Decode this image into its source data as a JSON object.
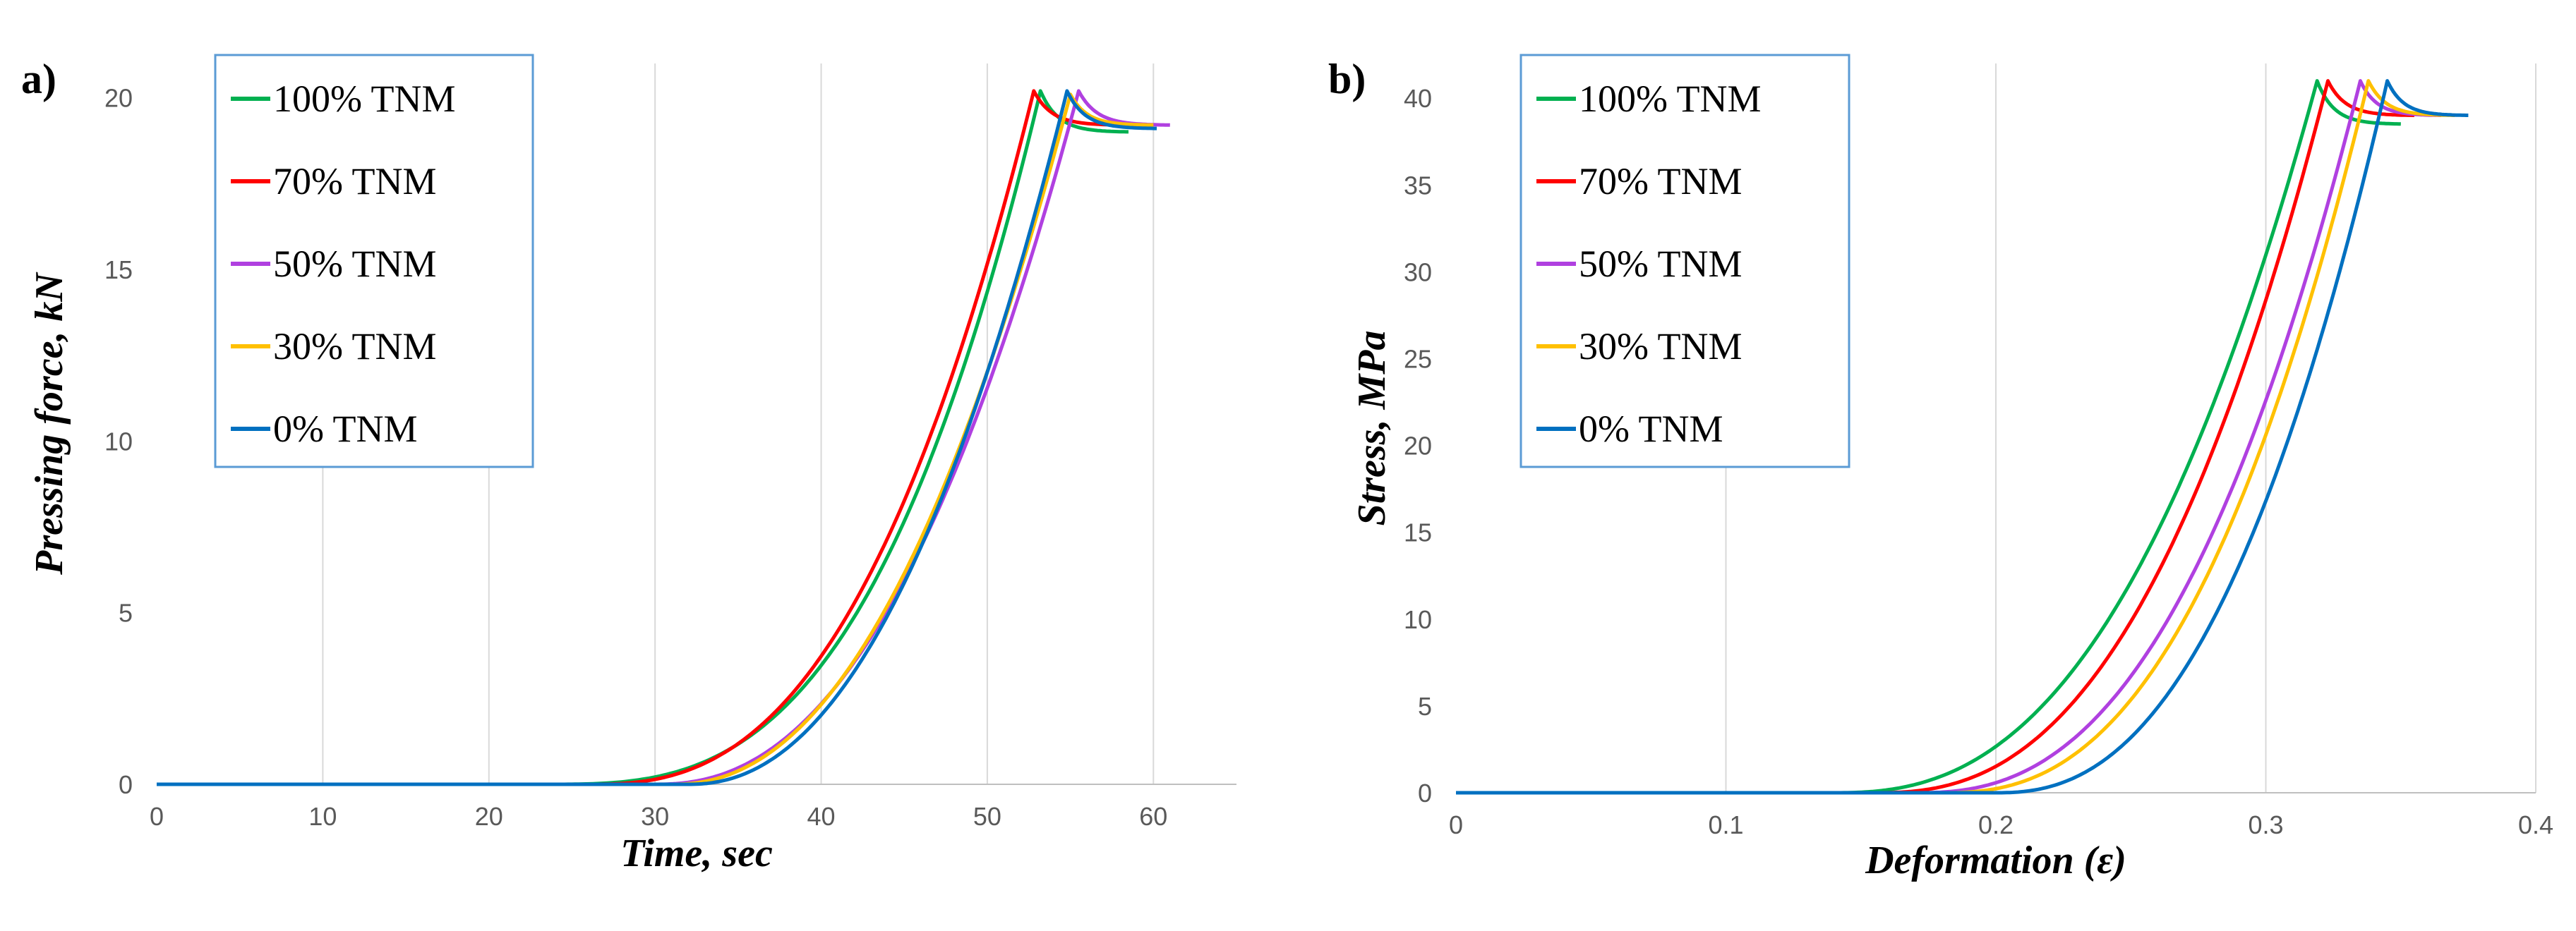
{
  "chart_data": [
    {
      "type": "line",
      "panel_label": "a)",
      "title": "",
      "xlabel": "Time, sec",
      "ylabel": "Pressing force, kN",
      "xlim": [
        0,
        65
      ],
      "ylim": [
        0,
        21
      ],
      "xticks": [
        "0",
        "10",
        "20",
        "30",
        "40",
        "50",
        "60"
      ],
      "xtick_values": [
        0,
        10,
        20,
        30,
        40,
        50,
        60
      ],
      "yticks": [
        "0",
        "5",
        "10",
        "15",
        "20"
      ],
      "ytick_values": [
        0,
        5,
        10,
        15,
        20
      ],
      "grid": "vertical",
      "legend_position": "top-left",
      "series": [
        {
          "name": "100% TNM",
          "color": "#00B050",
          "zero_until": 23.5,
          "peak_x": 53.2,
          "peak_y": 20.2,
          "exp": 3.0,
          "end_x": 58.5,
          "end_y": 19.0
        },
        {
          "name": "70% TNM",
          "color": "#FF0000",
          "zero_until": 26.0,
          "peak_x": 52.8,
          "peak_y": 20.2,
          "exp": 2.6,
          "end_x": 58.2,
          "end_y": 19.2
        },
        {
          "name": "50% TNM",
          "color": "#B040E0",
          "zero_until": 30.0,
          "peak_x": 55.5,
          "peak_y": 20.2,
          "exp": 2.3,
          "end_x": 61.0,
          "end_y": 19.2
        },
        {
          "name": "30% TNM",
          "color": "#FFC000",
          "zero_until": 31.0,
          "peak_x": 55.0,
          "peak_y": 20.1,
          "exp": 2.2,
          "end_x": 60.0,
          "end_y": 19.2
        },
        {
          "name": "0% TNM",
          "color": "#0070C0",
          "zero_until": 32.0,
          "peak_x": 54.8,
          "peak_y": 20.2,
          "exp": 2.2,
          "end_x": 60.2,
          "end_y": 19.1
        }
      ]
    },
    {
      "type": "line",
      "panel_label": "b)",
      "title": "",
      "xlabel": "Deformation (ε)",
      "ylabel": "Stress, MPa",
      "xlim": [
        0,
        0.4
      ],
      "ylim": [
        0,
        42
      ],
      "xticks": [
        "0",
        "0.1",
        "0.2",
        "0.3",
        "0.4"
      ],
      "xtick_values": [
        0,
        0.1,
        0.2,
        0.3,
        0.4
      ],
      "yticks": [
        "0",
        "5",
        "10",
        "15",
        "20",
        "25",
        "30",
        "35",
        "40"
      ],
      "ytick_values": [
        0,
        5,
        10,
        15,
        20,
        25,
        30,
        35,
        40
      ],
      "grid": "vertical",
      "legend_position": "top-left",
      "series": [
        {
          "name": "100% TNM",
          "color": "#00B050",
          "zero_until": 0.14,
          "peak_x": 0.319,
          "peak_y": 41.0,
          "exp": 2.5,
          "end_x": 0.35,
          "end_y": 38.5
        },
        {
          "name": "70% TNM",
          "color": "#FF0000",
          "zero_until": 0.155,
          "peak_x": 0.323,
          "peak_y": 41.0,
          "exp": 2.5,
          "end_x": 0.355,
          "end_y": 39.0
        },
        {
          "name": "50% TNM",
          "color": "#B040E0",
          "zero_until": 0.17,
          "peak_x": 0.335,
          "peak_y": 41.0,
          "exp": 2.5,
          "end_x": 0.365,
          "end_y": 39.0
        },
        {
          "name": "30% TNM",
          "color": "#FFC000",
          "zero_until": 0.18,
          "peak_x": 0.338,
          "peak_y": 41.0,
          "exp": 2.5,
          "end_x": 0.37,
          "end_y": 39.0
        },
        {
          "name": "0% TNM",
          "color": "#0070C0",
          "zero_until": 0.2,
          "peak_x": 0.345,
          "peak_y": 41.0,
          "exp": 2.4,
          "end_x": 0.375,
          "end_y": 39.0
        }
      ]
    }
  ]
}
